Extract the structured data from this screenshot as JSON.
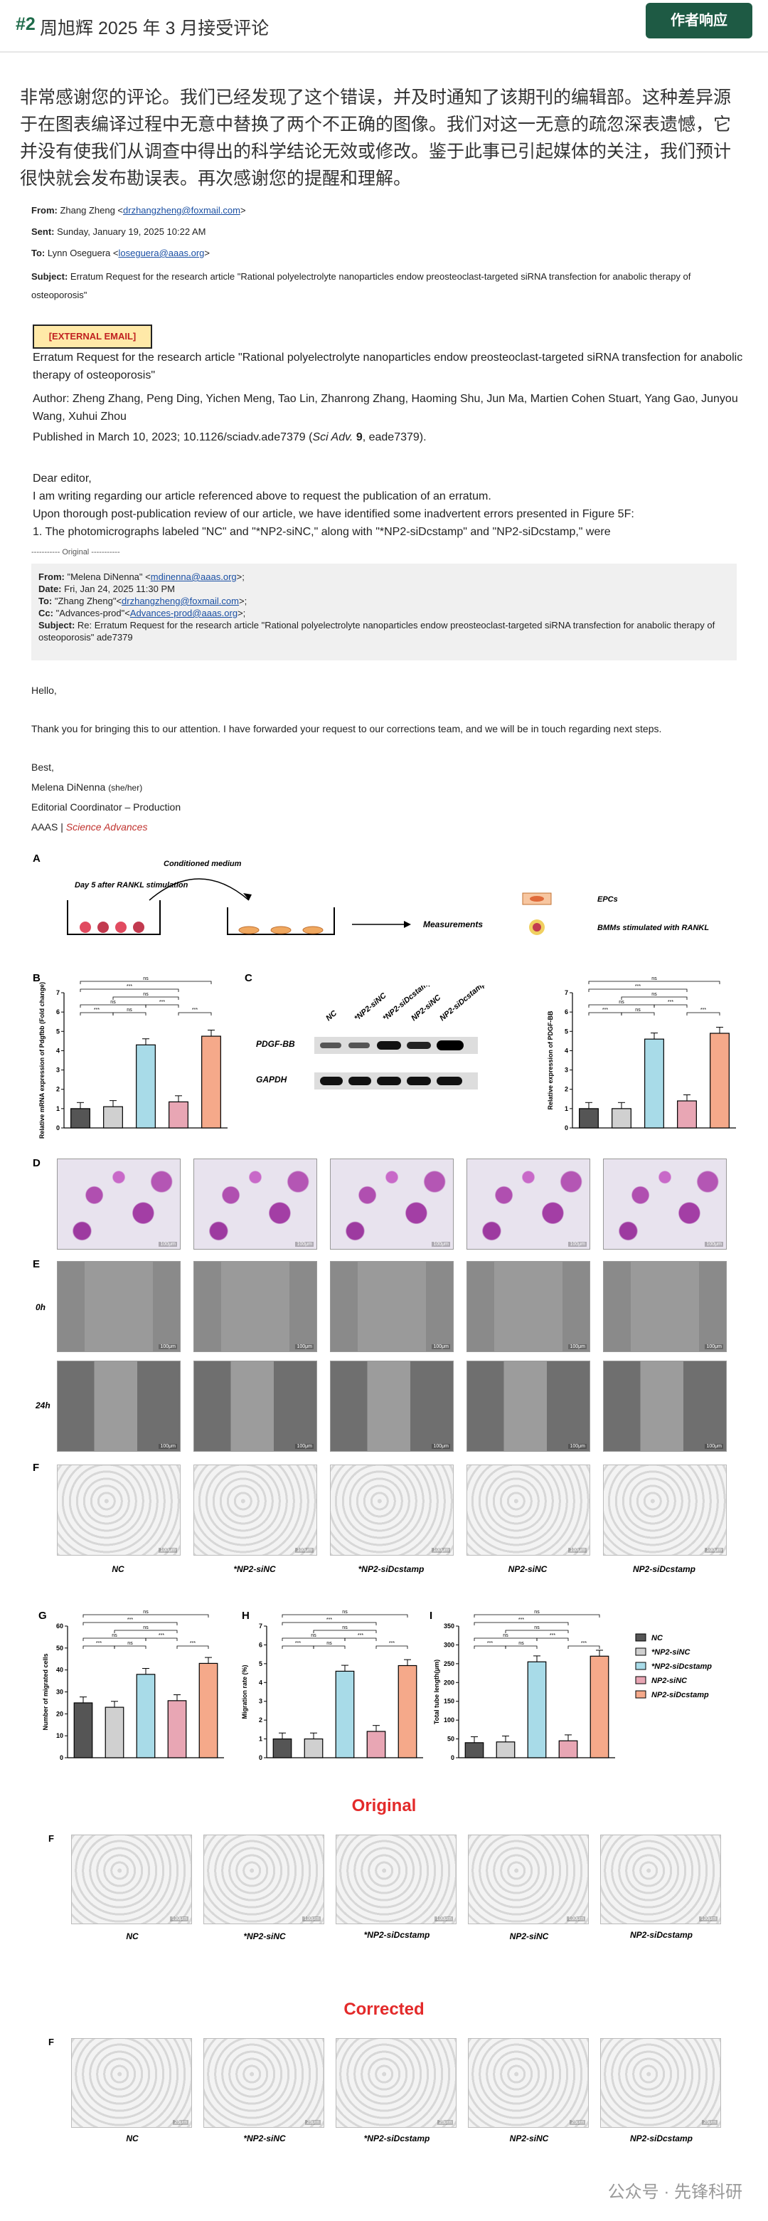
{
  "header": {
    "rank": "#2",
    "title": "周旭辉 2025 年 3 月接受评论",
    "reply_button": "作者响应"
  },
  "response_text": "非常感谢您的评论。我们已经发现了这个错误，并及时通知了该期刊的编辑部。这种差异源于在图表编译过程中无意中替换了两个不正确的图像。我们对这一无意的疏忽深表遗憾，它并没有使我们从调查中得出的科学结论无效或修改。鉴于此事已引起媒体的关注，我们预计很快就会发布勘误表。再次感谢您的提醒和理解。",
  "email1": {
    "from_label": "From:",
    "from_name": "Zhang Zheng <",
    "from_email": "drzhangzheng@foxmail.com",
    "from_end": ">",
    "sent_label": "Sent:",
    "sent_value": "Sunday, January 19, 2025 10:22 AM",
    "to_label": "To:",
    "to_name": "Lynn Oseguera <",
    "to_email": "loseguera@aaas.org",
    "to_end": ">",
    "subject_label": "Subject:",
    "subject_value": "Erratum Request for the research article \"Rational polyelectrolyte nanoparticles endow preosteoclast-targeted siRNA transfection for anabolic therapy of osteoporosis\"",
    "external_tag": "[EXTERNAL EMAIL]",
    "body_title": "Erratum Request for the research article \"Rational polyelectrolyte nanoparticles endow preosteoclast-targeted siRNA transfection for anabolic therapy of osteoporosis\"",
    "authors": "Author: Zheng Zhang, Peng Ding, Yichen Meng, Tao Lin, Zhanrong Zhang, Haoming Shu, Jun Ma, Martien Cohen Stuart, Yang Gao, Junyou Wang, Xuhui Zhou",
    "published_prefix": "Published in March 10, 2023; 10.1126/sciadv.ade7379 (",
    "published_journal": "Sci Adv.",
    "published_vol": "9",
    "published_suffix": ", eade7379).",
    "greeting": "Dear editor,",
    "line1": "I am writing regarding our article referenced above to request the publication of an erratum.",
    "line2": "Upon thorough post-publication review of our article, we have identified some inadvertent errors presented in Figure 5F:",
    "line3": "1. The photomicrographs labeled \"NC\" and \"*NP2-siNC,\" along with \"*NP2-siDcstamp\" and \"NP2-siDcstamp,\" were",
    "original_divider": "----------- Original -----------"
  },
  "email2": {
    "from_label": "From:",
    "from_value": "\"Melena DiNenna\" <",
    "from_email": "mdinenna@aaas.org",
    "from_end": ">;",
    "date_label": "Date:",
    "date_value": "Fri, Jan 24, 2025 11:30 PM",
    "to_label": "To:",
    "to_value": "\"Zhang Zheng\"<",
    "to_email": "drzhangzheng@foxmail.com",
    "to_end": ">;",
    "cc_label": "Cc:",
    "cc_value": "\"Advances-prod\"<",
    "cc_email": "Advances-prod@aaas.org",
    "cc_end": ">;",
    "subject_label": "Subject:",
    "subject_value": "Re: Erratum Request for the research article \"Rational polyelectrolyte nanoparticles endow preosteoclast-targeted siRNA transfection for anabolic therapy of osteoporosis\" ade7379",
    "hello": "Hello,",
    "thanks": "Thank you for bringing this to our attention. I have forwarded your request to our corrections team, and we will be in touch regarding next steps.",
    "best": "Best,",
    "sig_name": "Melena DiNenna",
    "sig_pronoun": "(she/her)",
    "sig_title": "Editorial Coordinator – Production",
    "sig_org": "AAAS | ",
    "sig_journal": "Science Advances"
  },
  "figure": {
    "panel_letters": [
      "A",
      "B",
      "C",
      "D",
      "E",
      "F",
      "G",
      "H",
      "I"
    ],
    "schematic": {
      "day_label": "Day 5 after RANKL stimulation",
      "conditioned": "Conditioned medium",
      "measurements": "Measurements",
      "epcs": "EPCs",
      "bmms": "BMMs stimulated with RANKL"
    },
    "groups": [
      "NC",
      "*NP2-siNC",
      "*NP2-siDcstamp",
      "NP2-siNC",
      "NP2-siDcstamp"
    ],
    "western": {
      "row1": "PDGF-BB",
      "row2": "GAPDH"
    },
    "time_labels": [
      "0h",
      "24h"
    ],
    "sig_labels": [
      "***",
      "ns",
      "***",
      "ns",
      "***",
      "ns",
      "***",
      "ns"
    ],
    "colors": [
      "#555555",
      "#d0d0d0",
      "#a8dbe8",
      "#e8a6b4",
      "#f5a98a"
    ]
  },
  "chart_data": [
    {
      "type": "bar",
      "panel": "B",
      "categories": [
        "NC",
        "*NP2-siNC",
        "*NP2-siDcstamp",
        "NP2-siNC",
        "NP2-siDcstamp"
      ],
      "values": [
        1.0,
        1.1,
        4.3,
        1.35,
        4.75
      ],
      "ylabel": "Relative mRNA expression of Pdgfbb (Fold change)",
      "ylim": [
        0,
        7
      ],
      "yticks": [
        0,
        1,
        2,
        3,
        4,
        5,
        6,
        7
      ]
    },
    {
      "type": "bar",
      "panel": "C",
      "categories": [
        "NC",
        "*NP2-siNC",
        "*NP2-siDcstamp",
        "NP2-siNC",
        "NP2-siDcstamp"
      ],
      "values": [
        1.0,
        1.0,
        4.6,
        1.4,
        4.9
      ],
      "ylabel": "Relative expression of PDGF-BB",
      "ylim": [
        0,
        7
      ],
      "yticks": [
        0,
        1,
        2,
        3,
        4,
        5,
        6,
        7
      ]
    },
    {
      "type": "bar",
      "panel": "G",
      "categories": [
        "NC",
        "*NP2-siNC",
        "*NP2-siDcstamp",
        "NP2-siNC",
        "NP2-siDcstamp"
      ],
      "values": [
        25,
        23,
        38,
        26,
        43
      ],
      "ylabel": "Number of migrated cells",
      "ylim": [
        0,
        60
      ],
      "yticks": [
        0,
        10,
        20,
        30,
        40,
        50,
        60
      ]
    },
    {
      "type": "bar",
      "panel": "H",
      "categories": [
        "NC",
        "*NP2-siNC",
        "*NP2-siDcstamp",
        "NP2-siNC",
        "NP2-siDcstamp"
      ],
      "values": [
        1.0,
        1.0,
        4.6,
        1.4,
        4.9
      ],
      "ylabel": "Migration rate (%)",
      "ylim": [
        0,
        7
      ],
      "yticks": [
        0,
        1,
        2,
        3,
        4,
        5,
        6,
        7
      ]
    },
    {
      "type": "bar",
      "panel": "I",
      "categories": [
        "NC",
        "*NP2-siNC",
        "*NP2-siDcstamp",
        "NP2-siNC",
        "NP2-siDcstamp"
      ],
      "values": [
        40,
        42,
        255,
        45,
        270
      ],
      "ylabel": "Total tube length(μm)",
      "ylim": [
        0,
        350
      ],
      "yticks": [
        0,
        50,
        100,
        150,
        200,
        250,
        300,
        350
      ]
    }
  ],
  "legend": [
    "NC",
    "*NP2-siNC",
    "*NP2-siDcstamp",
    "NP2-siNC",
    "NP2-siDcstamp"
  ],
  "original_label": "Original",
  "corrected_label": "Corrected",
  "scale_labels": {
    "main": "100μm",
    "corrected": "25μm"
  },
  "footer": "公众号 · 先锋科研"
}
